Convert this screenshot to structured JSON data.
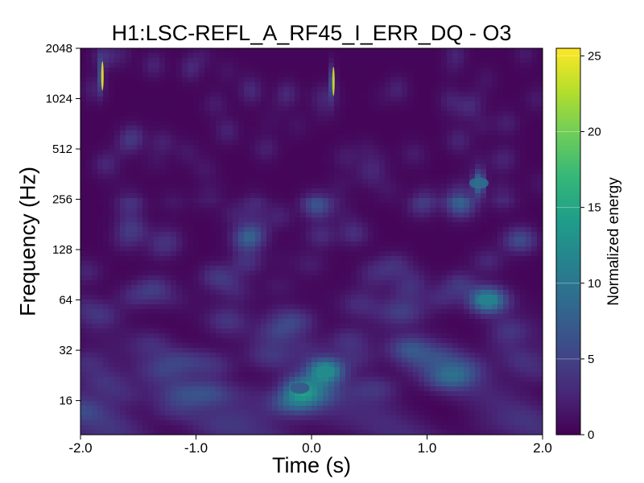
{
  "chart_data": {
    "type": "heatmap",
    "title": "H1:LSC-REFL_A_RF45_I_ERR_DQ - O3",
    "xlabel": "Time (s)",
    "ylabel": "Frequency (Hz)",
    "xlim": [
      -2.0,
      2.0
    ],
    "ylim": [
      10,
      2048
    ],
    "yscale": "log2",
    "x_ticks": [
      {
        "value": -2.0,
        "label": "-2.0"
      },
      {
        "value": -1.0,
        "label": "-1.0"
      },
      {
        "value": 0.0,
        "label": "0.0"
      },
      {
        "value": 1.0,
        "label": "1.0"
      },
      {
        "value": 2.0,
        "label": "2.0"
      }
    ],
    "y_ticks": [
      {
        "value": 16,
        "label": "16"
      },
      {
        "value": 32,
        "label": "32"
      },
      {
        "value": 64,
        "label": "64"
      },
      {
        "value": 128,
        "label": "128"
      },
      {
        "value": 256,
        "label": "256"
      },
      {
        "value": 512,
        "label": "512"
      },
      {
        "value": 1024,
        "label": "1024"
      },
      {
        "value": 2048,
        "label": "2048"
      }
    ],
    "colorbar": {
      "label": "Normalized energy",
      "range": [
        0,
        25.5
      ],
      "colormap": "viridis",
      "ticks": [
        {
          "value": 0,
          "label": "0"
        },
        {
          "value": 5,
          "label": "5"
        },
        {
          "value": 10,
          "label": "10"
        },
        {
          "value": 15,
          "label": "15"
        },
        {
          "value": 20,
          "label": "20"
        },
        {
          "value": 25,
          "label": "25"
        }
      ]
    },
    "notable_features": [
      {
        "t": 0.12,
        "f": 24,
        "energy": 12
      },
      {
        "t": -0.1,
        "f": 19,
        "energy": 7
      },
      {
        "t": 1.52,
        "f": 64,
        "energy": 11
      },
      {
        "t": 1.45,
        "f": 320,
        "energy": 9
      },
      {
        "t": -1.81,
        "f": 1400,
        "energy": 25
      },
      {
        "t": 0.19,
        "f": 1300,
        "energy": 24
      }
    ]
  }
}
